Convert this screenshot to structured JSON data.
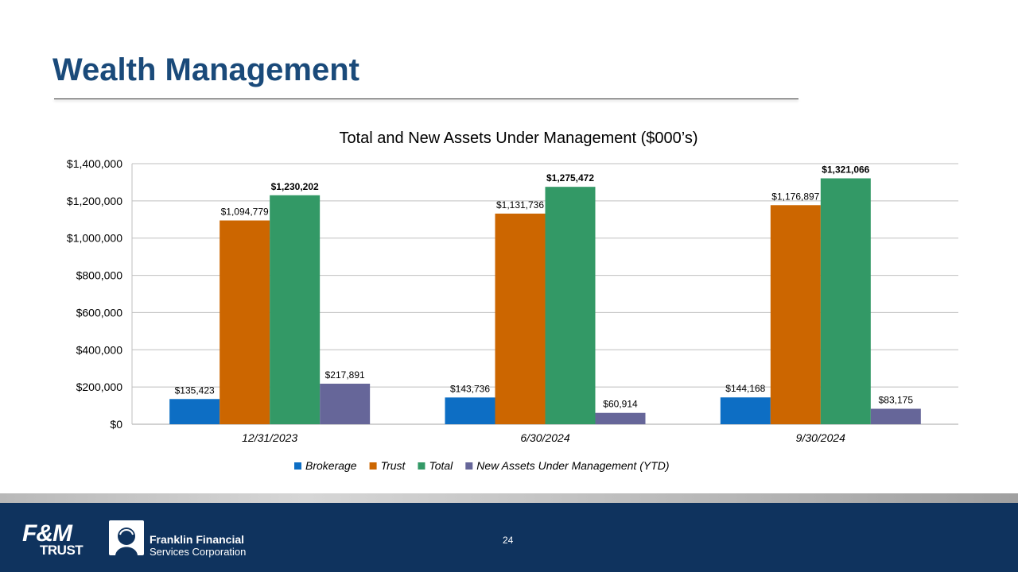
{
  "slide": {
    "title": "Wealth Management",
    "page_number": "24"
  },
  "footer": {
    "logo_fm": "F&M",
    "logo_trust": "TRUST",
    "company_line1": "Franklin Financial",
    "company_line2": "Services Corporation"
  },
  "colors": {
    "Brokerage": "#0d6ec4",
    "Trust": "#cc6600",
    "Total": "#339966",
    "New Assets Under Management (YTD)": "#666699",
    "title": "#1a4a7a",
    "footer": "#0f335e"
  },
  "chart_data": {
    "type": "bar",
    "title": "Total and New Assets Under Management ($000’s)",
    "categories": [
      "12/31/2023",
      "6/30/2024",
      "9/30/2024"
    ],
    "series": [
      {
        "name": "Brokerage",
        "values": [
          135423,
          143736,
          144168
        ],
        "labels": [
          "$135,423",
          "$143,736",
          "$144,168"
        ],
        "bold_labels": false
      },
      {
        "name": "Trust",
        "values": [
          1094779,
          1131736,
          1176897
        ],
        "labels": [
          "$1,094,779",
          "$1,131,736",
          "$1,176,897"
        ],
        "bold_labels": false
      },
      {
        "name": "Total",
        "values": [
          1230202,
          1275472,
          1321066
        ],
        "labels": [
          "$1,230,202",
          "$1,275,472",
          "$1,321,066"
        ],
        "bold_labels": true
      },
      {
        "name": "New Assets Under Management (YTD)",
        "values": [
          217891,
          60914,
          83175
        ],
        "labels": [
          "$217,891",
          "$60,914",
          "$83,175"
        ],
        "bold_labels": false
      }
    ],
    "ylim": [
      0,
      1400000
    ],
    "yticks": [
      0,
      200000,
      400000,
      600000,
      800000,
      1000000,
      1200000,
      1400000
    ],
    "ytick_labels": [
      "$0",
      "$200,000",
      "$400,000",
      "$600,000",
      "$800,000",
      "$1,000,000",
      "$1,200,000",
      "$1,400,000"
    ],
    "grid": true,
    "legend": "bottom",
    "xlabel": "",
    "ylabel": ""
  }
}
